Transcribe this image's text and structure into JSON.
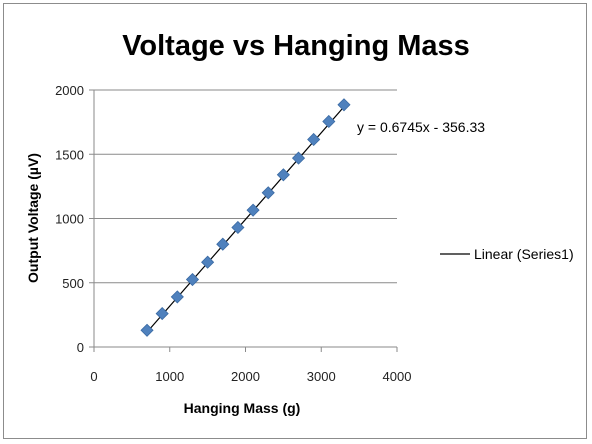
{
  "chart_data": {
    "type": "scatter",
    "title": "Voltage vs Hanging Mass",
    "xlabel": "Hanging Mass (g)",
    "ylabel": "Output Voltage (µV)",
    "xlim": [
      0,
      4000
    ],
    "ylim": [
      0,
      2000
    ],
    "xticks": [
      "0",
      "1000",
      "2000",
      "3000",
      "4000"
    ],
    "yticks": [
      "0",
      "500",
      "1000",
      "1500",
      "2000"
    ],
    "grid": "horizontal",
    "legend_position": "right",
    "series": [
      {
        "name": "Series1",
        "marker": "diamond",
        "color": "#4f81bd",
        "x": [
          700,
          900,
          1100,
          1300,
          1500,
          1700,
          1900,
          2100,
          2300,
          2500,
          2700,
          2900,
          3100,
          3300
        ],
        "y": [
          130,
          260,
          390,
          525,
          660,
          800,
          930,
          1065,
          1200,
          1340,
          1470,
          1615,
          1755,
          1885
        ]
      }
    ],
    "trendline": {
      "label": "Linear (Series1)",
      "slope": 0.6745,
      "intercept": -356.33,
      "equation": "y = 0.6745x - 356.33",
      "color": "#000000"
    }
  }
}
